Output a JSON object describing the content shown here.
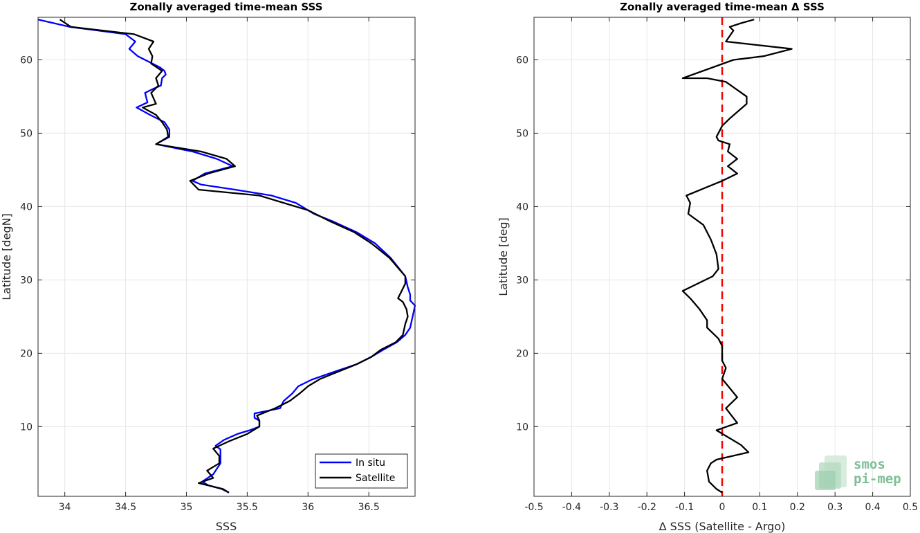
{
  "chart_data": [
    {
      "type": "line",
      "title": "Zonally averaged time-mean SSS",
      "xlabel": "SSS",
      "ylabel": "Latitude [degN]",
      "xlim": [
        33.78,
        36.88
      ],
      "ylim": [
        0.5,
        65.8
      ],
      "xticks": [
        34,
        34.5,
        35,
        35.5,
        36,
        36.5
      ],
      "xtick_labels": [
        "34",
        "34.5",
        "35",
        "35.5",
        "36",
        "36.5"
      ],
      "yticks": [
        10,
        20,
        30,
        40,
        50,
        60
      ],
      "ytick_labels": [
        "10",
        "20",
        "30",
        "40",
        "50",
        "60"
      ],
      "grid": true,
      "legend_position": "bottom-right",
      "series": [
        {
          "name": "In situ",
          "color": "#0000ff",
          "points": [
            [
              35.35,
              1.0
            ],
            [
              35.29,
              1.5
            ],
            [
              35.18,
              2.0
            ],
            [
              35.13,
              2.5
            ],
            [
              35.22,
              3.5
            ],
            [
              35.28,
              5.0
            ],
            [
              35.28,
              6.0
            ],
            [
              35.28,
              6.9
            ],
            [
              35.24,
              7.4
            ],
            [
              35.31,
              8.2
            ],
            [
              35.42,
              9.0
            ],
            [
              35.52,
              9.5
            ],
            [
              35.6,
              10.0
            ],
            [
              35.6,
              10.8
            ],
            [
              35.56,
              11.2
            ],
            [
              35.56,
              11.8
            ],
            [
              35.77,
              12.5
            ],
            [
              35.8,
              13.5
            ],
            [
              35.87,
              14.5
            ],
            [
              35.92,
              15.5
            ],
            [
              36.03,
              16.4
            ],
            [
              36.22,
              17.5
            ],
            [
              36.4,
              18.5
            ],
            [
              36.52,
              19.5
            ],
            [
              36.62,
              20.5
            ],
            [
              36.73,
              21.5
            ],
            [
              36.8,
              22.5
            ],
            [
              36.84,
              23.5
            ],
            [
              36.86,
              25.0
            ],
            [
              36.88,
              26.5
            ],
            [
              36.84,
              27.2
            ],
            [
              36.84,
              28.0
            ],
            [
              36.82,
              29.0
            ],
            [
              36.8,
              30.5
            ],
            [
              36.68,
              33.0
            ],
            [
              36.55,
              35.0
            ],
            [
              36.4,
              36.5
            ],
            [
              36.2,
              38.0
            ],
            [
              36.05,
              39.0
            ],
            [
              35.9,
              40.5
            ],
            [
              35.7,
              41.5
            ],
            [
              35.4,
              42.3
            ],
            [
              35.12,
              43.0
            ],
            [
              35.05,
              43.5
            ],
            [
              35.15,
              44.5
            ],
            [
              35.38,
              45.5
            ],
            [
              35.25,
              46.5
            ],
            [
              35.05,
              47.5
            ],
            [
              34.75,
              48.5
            ],
            [
              34.86,
              49.5
            ],
            [
              34.86,
              50.5
            ],
            [
              34.82,
              51.5
            ],
            [
              34.7,
              52.5
            ],
            [
              34.59,
              53.5
            ],
            [
              34.68,
              54.2
            ],
            [
              34.66,
              55.5
            ],
            [
              34.72,
              56.0
            ],
            [
              34.79,
              56.5
            ],
            [
              34.8,
              57.5
            ],
            [
              34.83,
              58.0
            ],
            [
              34.82,
              58.5
            ],
            [
              34.78,
              59.0
            ],
            [
              34.6,
              60.5
            ],
            [
              34.53,
              61.5
            ],
            [
              34.58,
              62.5
            ],
            [
              34.5,
              63.5
            ],
            [
              34.04,
              64.5
            ],
            [
              33.78,
              65.5
            ]
          ]
        },
        {
          "name": "Satellite",
          "color": "#000000",
          "points": [
            [
              35.35,
              1.0
            ],
            [
              35.3,
              1.5
            ],
            [
              35.1,
              2.3
            ],
            [
              35.22,
              3.0
            ],
            [
              35.17,
              4.0
            ],
            [
              35.27,
              5.0
            ],
            [
              35.27,
              6.0
            ],
            [
              35.22,
              7.0
            ],
            [
              35.35,
              8.0
            ],
            [
              35.5,
              9.0
            ],
            [
              35.6,
              10.0
            ],
            [
              35.6,
              10.8
            ],
            [
              35.58,
              11.5
            ],
            [
              35.73,
              12.5
            ],
            [
              35.85,
              13.5
            ],
            [
              35.93,
              14.5
            ],
            [
              36.0,
              15.5
            ],
            [
              36.1,
              16.5
            ],
            [
              36.25,
              17.5
            ],
            [
              36.4,
              18.5
            ],
            [
              36.52,
              19.5
            ],
            [
              36.6,
              20.5
            ],
            [
              36.72,
              21.5
            ],
            [
              36.78,
              22.5
            ],
            [
              36.8,
              24.0
            ],
            [
              36.82,
              25.0
            ],
            [
              36.81,
              26.0
            ],
            [
              36.78,
              27.0
            ],
            [
              36.74,
              27.5
            ],
            [
              36.77,
              28.5
            ],
            [
              36.8,
              29.5
            ],
            [
              36.8,
              30.5
            ],
            [
              36.67,
              33.0
            ],
            [
              36.52,
              35.0
            ],
            [
              36.38,
              36.5
            ],
            [
              36.18,
              38.0
            ],
            [
              36.0,
              39.5
            ],
            [
              35.8,
              40.5
            ],
            [
              35.6,
              41.5
            ],
            [
              35.1,
              42.3
            ],
            [
              35.03,
              43.5
            ],
            [
              35.18,
              44.5
            ],
            [
              35.4,
              45.5
            ],
            [
              35.33,
              46.5
            ],
            [
              35.12,
              47.5
            ],
            [
              34.75,
              48.5
            ],
            [
              34.85,
              49.5
            ],
            [
              34.84,
              50.5
            ],
            [
              34.8,
              51.5
            ],
            [
              34.75,
              52.5
            ],
            [
              34.64,
              53.5
            ],
            [
              34.75,
              54.0
            ],
            [
              34.71,
              55.5
            ],
            [
              34.77,
              56.5
            ],
            [
              34.75,
              57.5
            ],
            [
              34.8,
              58.5
            ],
            [
              34.71,
              59.5
            ],
            [
              34.72,
              60.5
            ],
            [
              34.69,
              61.5
            ],
            [
              34.73,
              62.5
            ],
            [
              34.57,
              63.5
            ],
            [
              34.05,
              64.5
            ],
            [
              33.96,
              65.5
            ]
          ]
        }
      ]
    },
    {
      "type": "line",
      "title": "Zonally averaged time-mean Δ SSS",
      "xlabel": "Δ SSS (Satellite - Argo)",
      "ylabel": "Latitude [deg]",
      "xlim": [
        -0.5,
        0.5
      ],
      "ylim": [
        0.5,
        65.8
      ],
      "xticks": [
        -0.5,
        -0.4,
        -0.3,
        -0.2,
        -0.1,
        0,
        0.1,
        0.2,
        0.3,
        0.4,
        0.5
      ],
      "xtick_labels": [
        "-0.5",
        "-0.4",
        "-0.3",
        "-0.2",
        "-0.1",
        "0",
        "0.1",
        "0.2",
        "0.3",
        "0.4",
        "0.5"
      ],
      "yticks": [
        10,
        20,
        30,
        40,
        50,
        60
      ],
      "ytick_labels": [
        "10",
        "20",
        "30",
        "40",
        "50",
        "60"
      ],
      "grid": true,
      "reference_line": {
        "x": 0,
        "color": "#ff0000",
        "style": "dashed"
      },
      "series": [
        {
          "color": "#000000",
          "points": [
            [
              0.0,
              1.0
            ],
            [
              -0.015,
              1.5
            ],
            [
              -0.035,
              2.5
            ],
            [
              -0.04,
              4.0
            ],
            [
              -0.03,
              5.0
            ],
            [
              -0.015,
              5.5
            ],
            [
              0.07,
              6.5
            ],
            [
              0.05,
              7.5
            ],
            [
              -0.015,
              9.5
            ],
            [
              0.04,
              10.5
            ],
            [
              0.01,
              12.5
            ],
            [
              0.04,
              14.0
            ],
            [
              0.0,
              16.5
            ],
            [
              0.01,
              18.0
            ],
            [
              0.0,
              19.0
            ],
            [
              0.0,
              21.0
            ],
            [
              -0.01,
              22.0
            ],
            [
              -0.04,
              23.5
            ],
            [
              -0.04,
              24.5
            ],
            [
              -0.06,
              26.0
            ],
            [
              -0.085,
              27.5
            ],
            [
              -0.105,
              28.5
            ],
            [
              -0.025,
              30.5
            ],
            [
              -0.01,
              31.5
            ],
            [
              -0.015,
              33.5
            ],
            [
              -0.03,
              35.5
            ],
            [
              -0.05,
              37.5
            ],
            [
              -0.09,
              39.0
            ],
            [
              -0.085,
              40.5
            ],
            [
              -0.095,
              41.5
            ],
            [
              0.0,
              43.5
            ],
            [
              0.04,
              44.5
            ],
            [
              0.015,
              45.5
            ],
            [
              0.04,
              46.5
            ],
            [
              0.015,
              47.5
            ],
            [
              0.02,
              48.5
            ],
            [
              -0.01,
              49.0
            ],
            [
              -0.015,
              49.5
            ],
            [
              0.0,
              51.0
            ],
            [
              0.02,
              52.0
            ],
            [
              0.065,
              54.0
            ],
            [
              0.065,
              55.0
            ],
            [
              0.01,
              57.0
            ],
            [
              -0.04,
              57.5
            ],
            [
              -0.105,
              57.5
            ],
            [
              0.03,
              60.0
            ],
            [
              0.11,
              60.5
            ],
            [
              0.185,
              61.5
            ],
            [
              0.01,
              62.5
            ],
            [
              0.03,
              64.0
            ],
            [
              0.02,
              64.5
            ],
            [
              0.05,
              65.0
            ],
            [
              0.085,
              65.5
            ]
          ]
        }
      ]
    }
  ],
  "legend": {
    "items": [
      "In situ",
      "Satellite"
    ]
  },
  "logo": {
    "line1": "smos",
    "line2": "pi-mep"
  }
}
